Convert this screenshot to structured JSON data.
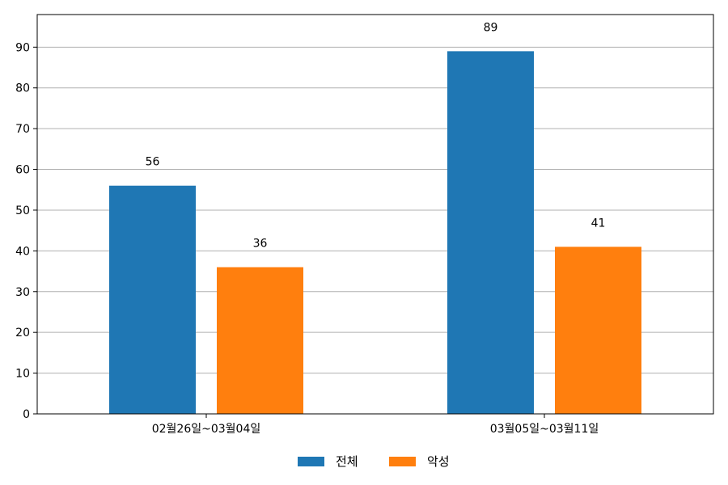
{
  "chart_data": {
    "type": "bar",
    "categories": [
      "02월26일~03월04일",
      "03월05일~03월11일"
    ],
    "series": [
      {
        "name": "전체",
        "values": [
          56,
          89
        ],
        "color": "#1f77b4"
      },
      {
        "name": "악성",
        "values": [
          36,
          41
        ],
        "color": "#ff7f0e"
      }
    ],
    "ylim": [
      0,
      98
    ],
    "yticks": [
      0,
      10,
      20,
      30,
      40,
      50,
      60,
      70,
      80,
      90
    ],
    "grid": true,
    "legend_position": "bottom-center",
    "data_labels": true
  }
}
